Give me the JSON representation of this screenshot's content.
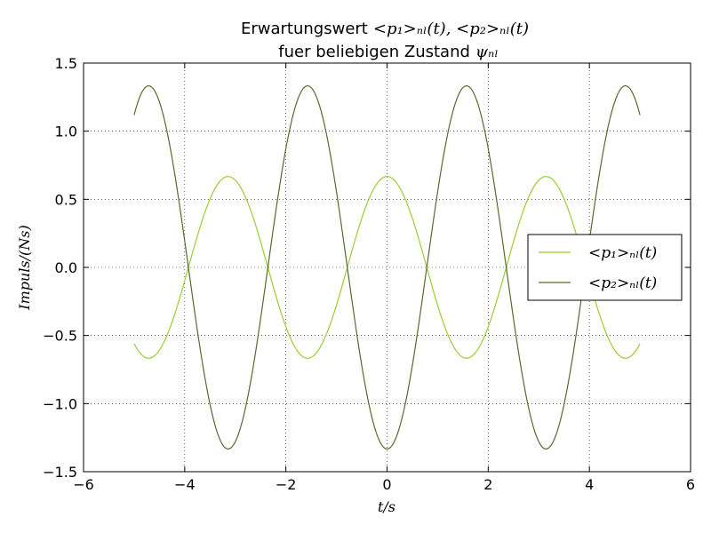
{
  "chart_data": {
    "type": "line",
    "title_line1_prefix": "Erwartungswert",
    "title_line1_math": "<p₁>ₙₗ(t), <p₂>ₙₗ(t)",
    "title_line2_prefix": "fuer beliebigen Zustand",
    "title_line2_math": "ψₙₗ",
    "xlabel": "t/s",
    "ylabel": "Impuls/(Ns)",
    "xlim": [
      -6,
      6
    ],
    "ylim": [
      -1.5,
      1.5
    ],
    "xticks": [
      -6,
      -4,
      -2,
      0,
      2,
      4,
      6
    ],
    "yticks": [
      -1.5,
      -1.0,
      -0.5,
      0.0,
      0.5,
      1.0,
      1.5
    ],
    "xtick_labels": [
      "−6",
      "−4",
      "−2",
      "0",
      "2",
      "4",
      "6"
    ],
    "ytick_labels": [
      "−1.5",
      "−1.0",
      "−0.5",
      "0.0",
      "0.5",
      "1.0",
      "1.5"
    ],
    "grid": true,
    "legend_position": "right",
    "x_range": [
      -5,
      5
    ],
    "series": [
      {
        "name": "<p₁>ₙₗ(t)",
        "color": "#9acd32",
        "function": "0.667*cos(2t)",
        "amplitude": 0.667,
        "angular_frequency": 2,
        "x": [
          -5,
          -4.75,
          -4.5,
          -4.25,
          -4,
          -3.75,
          -3.5,
          -3.25,
          -3,
          -2.75,
          -2.5,
          -2.25,
          -2,
          -1.75,
          -1.5,
          -1.25,
          -1,
          -0.75,
          -0.5,
          -0.25,
          0,
          0.25,
          0.5,
          0.75,
          1,
          1.25,
          1.5,
          1.75,
          2,
          2.25,
          2.5,
          2.75,
          3,
          3.25,
          3.5,
          3.75,
          4,
          4.25,
          4.5,
          4.75,
          5
        ],
        "y": [
          -0.56,
          -0.667,
          -0.607,
          -0.41,
          -0.097,
          0.232,
          0.503,
          0.65,
          0.64,
          0.472,
          0.189,
          -0.142,
          -0.436,
          -0.626,
          -0.66,
          -0.535,
          -0.278,
          0.047,
          0.36,
          0.585,
          0.667,
          0.585,
          0.36,
          0.047,
          -0.278,
          -0.535,
          -0.66,
          -0.626,
          -0.436,
          -0.142,
          0.189,
          0.472,
          0.64,
          0.65,
          0.503,
          0.232,
          -0.097,
          -0.41,
          -0.607,
          -0.667,
          -0.56
        ]
      },
      {
        "name": "<p₂>ₙₗ(t)",
        "color": "#556b2f",
        "function": "-1.333*cos(2t)",
        "amplitude": -1.333,
        "angular_frequency": 2,
        "x": [
          -5,
          -4.75,
          -4.5,
          -4.25,
          -4,
          -3.75,
          -3.5,
          -3.25,
          -3,
          -2.75,
          -2.5,
          -2.25,
          -2,
          -1.75,
          -1.5,
          -1.25,
          -1,
          -0.75,
          -0.5,
          -0.25,
          0,
          0.25,
          0.5,
          0.75,
          1,
          1.25,
          1.5,
          1.75,
          2,
          2.25,
          2.5,
          2.75,
          3,
          3.25,
          3.5,
          3.75,
          4,
          4.25,
          4.5,
          4.75,
          5
        ],
        "y": [
          1.118,
          1.333,
          1.214,
          0.82,
          0.194,
          -0.464,
          -1.005,
          -1.3,
          -1.28,
          -0.943,
          -0.378,
          0.284,
          0.871,
          1.252,
          1.32,
          1.07,
          0.555,
          -0.094,
          -0.72,
          -1.17,
          -1.333,
          -1.17,
          -0.72,
          -0.094,
          0.555,
          1.07,
          1.32,
          1.252,
          0.871,
          0.284,
          -0.378,
          -0.943,
          -1.28,
          -1.3,
          -1.005,
          -0.464,
          0.194,
          0.82,
          1.214,
          1.333,
          1.118
        ]
      }
    ]
  }
}
